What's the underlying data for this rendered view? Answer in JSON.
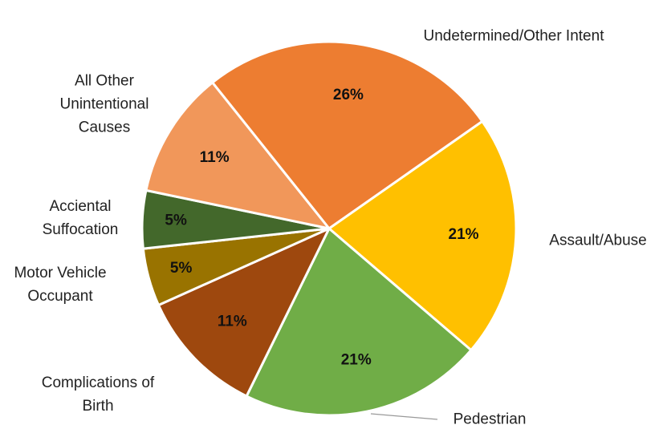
{
  "chart_data": {
    "type": "pie",
    "categories": [
      "Undetermined/Other Intent",
      "Assault/Abuse",
      "Pedestrian",
      "Complications of Birth",
      "Motor Vehicle Occupant",
      "Acciental Suffocation",
      "All Other Unintentional Causes"
    ],
    "values": [
      26,
      21,
      21,
      11,
      5,
      5,
      11
    ],
    "value_labels": [
      "26%",
      "21%",
      "21%",
      "11%",
      "5%",
      "5%",
      "11%"
    ],
    "colors": [
      "#ED7D31",
      "#FFC000",
      "#70AD47",
      "#9E480E",
      "#997300",
      "#43682B",
      "#F1975A"
    ]
  }
}
